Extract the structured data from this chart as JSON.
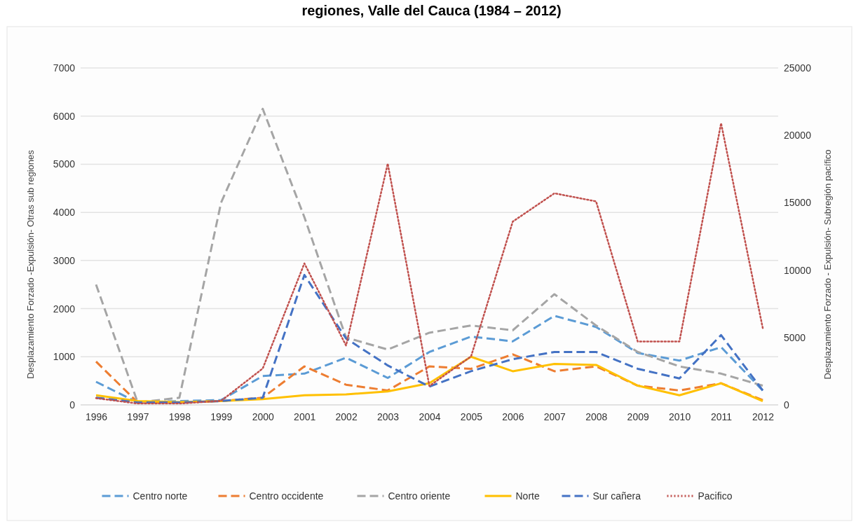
{
  "chart_data": {
    "type": "line",
    "title": "regiones, Valle del Cauca (1984 – 2012)",
    "ylabel": "Desplazamiento Forzado -Expulsión- Otras sub regiones",
    "y2label": "Desplazamiento Forzado - Expulsión- Subregión pacífico",
    "categories": [
      "1996",
      "1997",
      "1998",
      "1999",
      "2000",
      "2001",
      "2002",
      "2003",
      "2004",
      "2005",
      "2006",
      "2007",
      "2008",
      "2009",
      "2010",
      "2011",
      "2012"
    ],
    "series": [
      {
        "name": "Centro norte",
        "color": "#5b9bd5",
        "line_style": "dashed",
        "values": [
          480,
          50,
          80,
          100,
          600,
          650,
          980,
          560,
          1100,
          1420,
          1320,
          1850,
          1620,
          1080,
          920,
          1200,
          300
        ]
      },
      {
        "name": "Centro occidente",
        "color": "#ed7d31",
        "line_style": "dashed",
        "values": [
          900,
          50,
          50,
          80,
          150,
          800,
          420,
          300,
          800,
          750,
          1050,
          700,
          800,
          400,
          300,
          450,
          100
        ]
      },
      {
        "name": "Centro oriente",
        "color": "#a5a5a5",
        "line_style": "dashed",
        "values": [
          2500,
          50,
          150,
          4200,
          6150,
          3900,
          1400,
          1150,
          1500,
          1650,
          1550,
          2300,
          1650,
          1100,
          800,
          650,
          400
        ]
      },
      {
        "name": "Norte",
        "color": "#ffc000",
        "line_style": "solid",
        "values": [
          200,
          80,
          60,
          80,
          120,
          200,
          220,
          280,
          450,
          1000,
          700,
          850,
          830,
          400,
          200,
          450,
          80
        ]
      },
      {
        "name": "Sur cañera",
        "color": "#4472c4",
        "line_style": "dashed",
        "values": [
          150,
          50,
          50,
          80,
          150,
          2700,
          1380,
          820,
          380,
          700,
          950,
          1100,
          1100,
          750,
          550,
          1450,
          300
        ]
      },
      {
        "name": "Pacifico",
        "color": "#c0504d",
        "line_style": "dotted",
        "axis": "y2",
        "values": [
          500,
          100,
          100,
          300,
          2700,
          10500,
          4400,
          17900,
          1400,
          3600,
          13600,
          15700,
          15100,
          4700,
          4700,
          20900,
          5700
        ]
      }
    ],
    "ylim": [
      0,
      7000
    ],
    "yticks": [
      0,
      1000,
      2000,
      3000,
      4000,
      5000,
      6000,
      7000
    ],
    "y2lim": [
      0,
      25000
    ],
    "y2ticks": [
      0,
      5000,
      10000,
      15000,
      20000,
      25000
    ],
    "grid": "y",
    "legend": "bottom"
  }
}
